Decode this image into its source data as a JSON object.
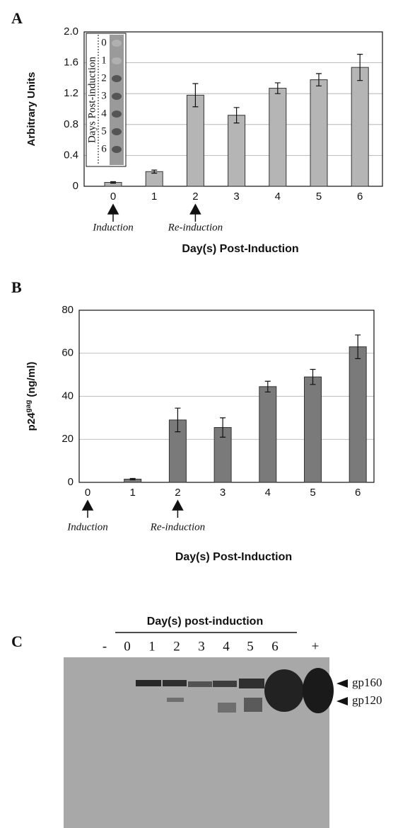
{
  "chart_data": [
    {
      "type": "bar",
      "panel_label": "A",
      "xlabel": "Day(s) Post-Induction",
      "ylabel": "Arbitrary Units",
      "categories": [
        "0",
        "1",
        "2",
        "3",
        "4",
        "5",
        "6"
      ],
      "values": [
        0.05,
        0.19,
        1.18,
        0.92,
        1.27,
        1.38,
        1.54
      ],
      "errors": [
        0.01,
        0.02,
        0.15,
        0.1,
        0.07,
        0.08,
        0.17
      ],
      "color": "#b5b5b5",
      "ylim": [
        0,
        2
      ],
      "yticks": [
        0,
        0.4,
        0.8,
        1.2,
        1.6,
        {
          "value": 2,
          "label": "2.0"
        }
      ],
      "grid": true,
      "annotations": [
        {
          "category": 0,
          "text": "Induction"
        },
        {
          "category": 2,
          "text": "Re-induction"
        }
      ],
      "inset": {
        "title": "Days Post-induction",
        "labels": [
          "0",
          "1",
          "2",
          "3",
          "4",
          "5",
          "6"
        ]
      }
    },
    {
      "type": "bar",
      "panel_label": "B",
      "xlabel": "Day(s) Post-Induction",
      "ylabel": [
        "p24",
        "gag",
        "(ng/ml)"
      ],
      "categories": [
        "0",
        "1",
        "2",
        "3",
        "4",
        "5",
        "6"
      ],
      "values": [
        0,
        1.5,
        29,
        25.5,
        44.5,
        49,
        63
      ],
      "errors": [
        0,
        0.3,
        5.5,
        4.5,
        2.5,
        3.5,
        5.5
      ],
      "color": "#7a7a7a",
      "ylim": [
        0,
        80
      ],
      "yticks": [
        0,
        20,
        40,
        60,
        80
      ],
      "grid": true,
      "annotations": [
        {
          "category": 0,
          "text": "Induction"
        },
        {
          "category": 2,
          "text": "Re-induction"
        }
      ]
    }
  ],
  "panel_c": {
    "panel_label": "C",
    "title": "Day(s) post-induction",
    "lanes": [
      "-",
      "0",
      "1",
      "2",
      "3",
      "4",
      "5",
      "6",
      "+"
    ],
    "bands": [
      "gp160",
      "gp120"
    ]
  }
}
